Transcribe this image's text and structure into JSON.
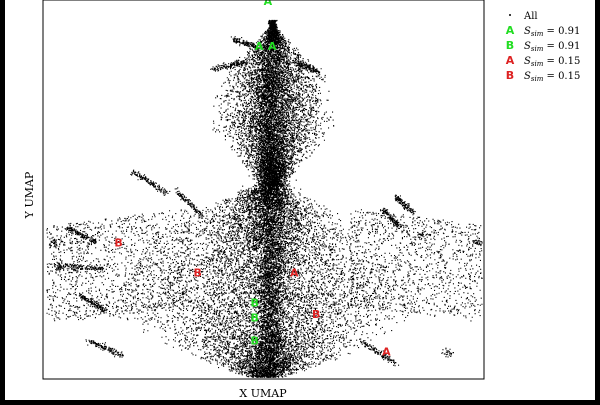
{
  "chart_data": {
    "type": "scatter",
    "title": "",
    "xlabel": "X UMAP",
    "ylabel": "Y UMAP",
    "grid": false,
    "axis_ticks": false,
    "legend_placement": "outside-top-right",
    "legend": [
      {
        "label": "All",
        "marker": "dot",
        "color": "#000000"
      },
      {
        "label": "S_sim = 0.91",
        "prefix": "S",
        "sub": "sim",
        "rest": " = 0.91",
        "marker": "A",
        "color": "#22dd22"
      },
      {
        "label": "S_sim = 0.91",
        "prefix": "S",
        "sub": "sim",
        "rest": " = 0.91",
        "marker": "B",
        "color": "#22dd22"
      },
      {
        "label": "S_sim = 0.15",
        "prefix": "S",
        "sub": "sim",
        "rest": " = 0.15",
        "marker": "A",
        "color": "#dd2222"
      },
      {
        "label": "S_sim = 0.15",
        "prefix": "S",
        "sub": "sim",
        "rest": " = 0.15",
        "marker": "B",
        "color": "#dd2222"
      }
    ],
    "series": [
      {
        "name": "All",
        "marker": "dot",
        "color": "#000000",
        "note": "dense cloud of several thousand points in an hourglass / mushroom shape; approximate only"
      },
      {
        "marker": "A",
        "color": "#22dd22",
        "points": [
          {
            "x": 0.51,
            "y": 1.0
          },
          {
            "x": 0.49,
            "y": 0.88
          },
          {
            "x": 0.52,
            "y": 0.88
          }
        ]
      },
      {
        "marker": "B",
        "color": "#22dd22",
        "points": [
          {
            "x": 0.48,
            "y": 0.2
          },
          {
            "x": 0.48,
            "y": 0.16
          },
          {
            "x": 0.48,
            "y": 0.1
          }
        ]
      },
      {
        "marker": "A",
        "color": "#dd2222",
        "points": [
          {
            "x": 0.57,
            "y": 0.28
          },
          {
            "x": 0.78,
            "y": 0.07
          }
        ]
      },
      {
        "marker": "B",
        "color": "#dd2222",
        "points": [
          {
            "x": 0.17,
            "y": 0.36
          },
          {
            "x": 0.35,
            "y": 0.28
          },
          {
            "x": 0.62,
            "y": 0.17
          }
        ]
      }
    ]
  }
}
